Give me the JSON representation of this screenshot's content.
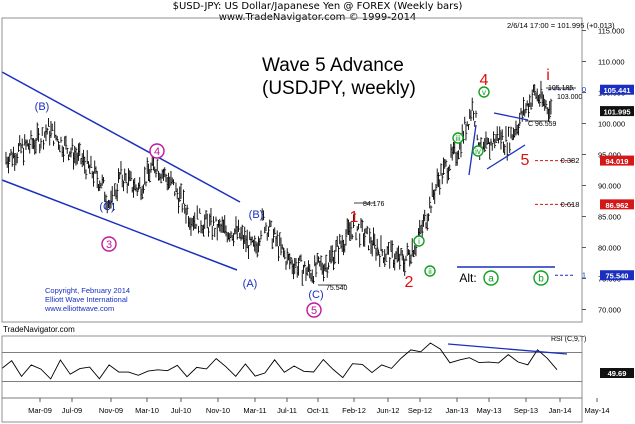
{
  "header": {
    "title": "$USD-JPY:  US Dollar/Japanese Yen @ FOREX  (Weekly bars)",
    "subtitle": "www.TradeNavigator.com © 1999-2014"
  },
  "big_title": {
    "line1": "Wave 5 Advance",
    "line2": "(USDJPY, weekly)"
  },
  "quote_line": "2/6/14 17:00 = 101.995 (+0.013)",
  "copyright": {
    "line1": "Copyright, February 2014",
    "line2": "Elliott Wave International",
    "line3": "www.elliottwave.com"
  },
  "brand": "TradeNavigator.com",
  "colors": {
    "wave_blue": "#1a2fbf",
    "wave_red": "#e01010",
    "wave_magenta": "#c0169a",
    "wave_green": "#10a020",
    "badge_red": "#d41818",
    "badge_blue": "#1a2fbf",
    "grid": "#aaaaaa"
  },
  "chart_data": [
    {
      "type": "candlestick",
      "title": "$USD-JPY:  US Dollar/Japanese Yen @ FOREX  (Weekly bars)",
      "x_ticks": [
        "Mar-09",
        "Jul-09",
        "Nov-09",
        "Mar-10",
        "Jul-10",
        "Nov-10",
        "Mar-11",
        "Jul-11",
        "Oct-11",
        "Feb-12",
        "Jun-12",
        "Sep-12",
        "Jan-13",
        "May-13",
        "Sep-13",
        "Jan-14",
        "May-14"
      ],
      "y_ticks": [
        70,
        75,
        80,
        85,
        90,
        95,
        100,
        105,
        110,
        115
      ],
      "y_tick_labels": [
        "70.000",
        "75.000",
        "80.000",
        "85.000",
        "90.000",
        "95.000",
        "100.000",
        "105.000",
        "110.000",
        "115.000"
      ],
      "ylim": [
        68,
        117
      ],
      "grid": false,
      "price_badges": [
        {
          "value": 105.441,
          "label": "105.441",
          "color": "blue"
        },
        {
          "value": 101.995,
          "label": "101.995",
          "color": "black"
        },
        {
          "value": 94.019,
          "label": "94.019",
          "color": "red"
        },
        {
          "value": 86.962,
          "label": "86.962",
          "color": "red"
        },
        {
          "value": 75.54,
          "label": "75.540",
          "color": "blue"
        }
      ],
      "fib_levels": [
        {
          "label": "0",
          "value": 105.441
        },
        {
          "label": "0.382",
          "value": 94.019
        },
        {
          "label": "0.618",
          "value": 86.962
        },
        {
          "label": "1",
          "value": 75.54
        }
      ],
      "price_annotations": [
        "84.176",
        "75.540",
        "105.185",
        "103.000",
        "96.559"
      ],
      "wave_labels": [
        "(B)",
        "(C)",
        "(A)",
        "(B)",
        "(C)",
        "3",
        "4",
        "5",
        "1",
        "2",
        "3",
        "4",
        "5",
        "i",
        "ii",
        "iii",
        "iv",
        "v",
        "Alt:",
        "a",
        "b"
      ],
      "price_series": [
        {
          "date": "2009-03",
          "close": 97.5
        },
        {
          "date": "2009-04",
          "close": 99.0
        },
        {
          "date": "2009-06",
          "close": 96.5
        },
        {
          "date": "2009-08",
          "close": 94.0
        },
        {
          "date": "2009-10",
          "close": 90.5
        },
        {
          "date": "2009-11",
          "close": 86.5
        },
        {
          "date": "2009-12",
          "close": 91.5
        },
        {
          "date": "2010-02",
          "close": 89.5
        },
        {
          "date": "2010-04",
          "close": 93.5
        },
        {
          "date": "2010-06",
          "close": 90.0
        },
        {
          "date": "2010-08",
          "close": 85.0
        },
        {
          "date": "2010-11",
          "close": 83.0
        },
        {
          "date": "2011-01",
          "close": 82.5
        },
        {
          "date": "2011-03",
          "close": 79.5
        },
        {
          "date": "2011-04",
          "close": 84.5
        },
        {
          "date": "2011-07",
          "close": 78.0
        },
        {
          "date": "2011-10",
          "close": 76.0
        },
        {
          "date": "2011-12",
          "close": 77.5
        },
        {
          "date": "2012-03",
          "close": 83.5
        },
        {
          "date": "2012-06",
          "close": 79.5
        },
        {
          "date": "2012-09",
          "close": 77.8
        },
        {
          "date": "2012-11",
          "close": 82.0
        },
        {
          "date": "2013-01",
          "close": 91.0
        },
        {
          "date": "2013-03",
          "close": 95.5
        },
        {
          "date": "2013-05",
          "close": 103.0
        },
        {
          "date": "2013-06",
          "close": 95.0
        },
        {
          "date": "2013-08",
          "close": 98.0
        },
        {
          "date": "2013-09",
          "close": 97.0
        },
        {
          "date": "2013-12",
          "close": 105.0
        },
        {
          "date": "2014-02",
          "close": 102.0
        }
      ]
    },
    {
      "type": "line",
      "title": "RSI (C,9,T)",
      "value_label": "49.69",
      "x_ticks": [
        "Mar-09",
        "Jul-09",
        "Nov-09",
        "Mar-10",
        "Jul-10",
        "Nov-10",
        "Mar-11",
        "Jul-11",
        "Oct-11",
        "Feb-12",
        "Jun-12",
        "Sep-12",
        "Jan-13",
        "May-13",
        "Sep-13",
        "Jan-14",
        "May-14"
      ],
      "series": [
        {
          "values": [
            48,
            55,
            42,
            50,
            46,
            38,
            55,
            42,
            50,
            45,
            38,
            52,
            40,
            48,
            35,
            44,
            50,
            40,
            55,
            38,
            45,
            52,
            60,
            48,
            42,
            50,
            38,
            45,
            55,
            46,
            52,
            40,
            48,
            58,
            45,
            40,
            50,
            55,
            45,
            48,
            52,
            62,
            70,
            76,
            80,
            74,
            60,
            55,
            65,
            58,
            52,
            60,
            66,
            54,
            58,
            70,
            62,
            50
          ]
        }
      ]
    }
  ]
}
